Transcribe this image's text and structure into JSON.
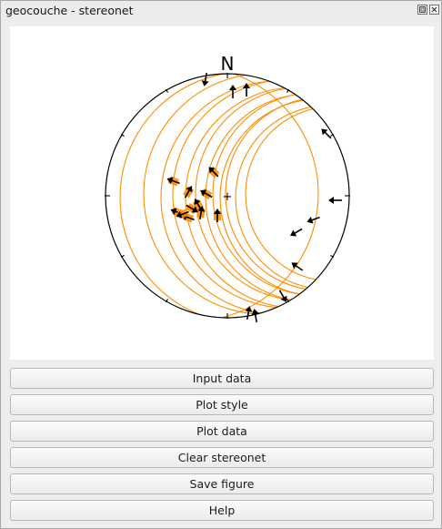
{
  "window": {
    "title": "geocouche - stereonet"
  },
  "stereonet": {
    "north_label": "N",
    "center_marker": "+",
    "line_color": "#ff8c00",
    "arrow_color": "#000000"
  },
  "buttons": {
    "input_data": "Input data",
    "plot_style": "Plot style",
    "plot_data": "Plot data",
    "clear_stereonet": "Clear stereonet",
    "save_figure": "Save figure",
    "help": "Help"
  }
}
